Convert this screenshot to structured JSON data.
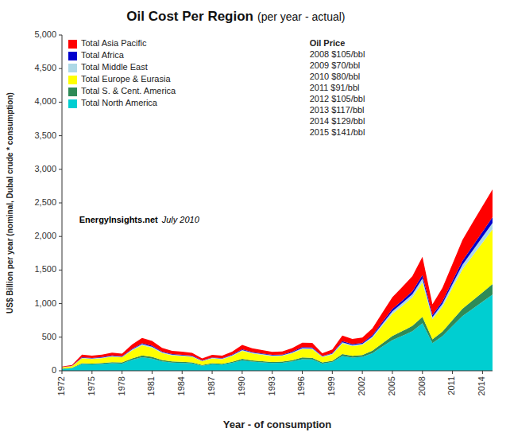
{
  "chart_data": {
    "type": "area",
    "stacked": true,
    "title": "Oil Cost Per Region",
    "subtitle": "(per year - actual)",
    "x_label": "Year - of consumption",
    "y_label": "US$ Billion per year (nominal, Dubal crude * consumption)",
    "x": [
      1972,
      1973,
      1974,
      1975,
      1976,
      1977,
      1978,
      1979,
      1980,
      1981,
      1982,
      1983,
      1984,
      1985,
      1986,
      1987,
      1988,
      1989,
      1990,
      1991,
      1992,
      1993,
      1994,
      1995,
      1996,
      1997,
      1998,
      1999,
      2000,
      2001,
      2002,
      2003,
      2004,
      2005,
      2006,
      2007,
      2008,
      2009,
      2010,
      2011,
      2012,
      2013,
      2014,
      2015
    ],
    "series": [
      {
        "name": "Total North America",
        "color": "#00CED1",
        "values": [
          28,
          38,
          100,
          95,
          102,
          112,
          108,
          162,
          200,
          182,
          140,
          122,
          116,
          110,
          75,
          98,
          92,
          118,
          155,
          136,
          125,
          115,
          118,
          138,
          172,
          170,
          108,
          130,
          218,
          196,
          206,
          262,
          360,
          456,
          520,
          588,
          708,
          412,
          514,
          666,
          815,
          922,
          1028,
          1135
        ]
      },
      {
        "name": "Total S. & Cent. America",
        "color": "#2E8B57",
        "values": [
          4,
          6,
          14,
          13,
          14,
          16,
          15,
          23,
          29,
          26,
          20,
          17,
          16,
          15,
          11,
          14,
          13,
          16,
          22,
          19,
          18,
          16,
          17,
          20,
          25,
          24,
          15,
          18,
          30,
          27,
          28,
          36,
          49,
          62,
          71,
          80,
          96,
          56,
          70,
          90,
          110,
          125,
          140,
          155
        ]
      },
      {
        "name": "Total Europe & Eurasia",
        "color": "#FFFF00",
        "values": [
          18,
          25,
          72,
          68,
          72,
          82,
          77,
          118,
          150,
          136,
          104,
          90,
          86,
          82,
          56,
          72,
          68,
          86,
          118,
          102,
          94,
          86,
          87,
          103,
          127,
          127,
          80,
          96,
          159,
          143,
          150,
          190,
          260,
          330,
          376,
          424,
          510,
          298,
          370,
          478,
          586,
          663,
          740,
          817
        ]
      },
      {
        "name": "Total Middle East",
        "color": "#ADD8E6",
        "values": [
          2,
          3,
          8,
          7,
          8,
          9,
          8,
          13,
          17,
          15,
          11,
          10,
          10,
          9,
          6,
          8,
          8,
          10,
          14,
          12,
          11,
          10,
          10,
          12,
          15,
          14,
          9,
          11,
          18,
          16,
          17,
          22,
          30,
          38,
          43,
          49,
          59,
          34,
          43,
          56,
          68,
          77,
          86,
          95
        ]
      },
      {
        "name": "Total Africa",
        "color": "#0000CD",
        "values": [
          2,
          3,
          7,
          7,
          7,
          8,
          8,
          11,
          14,
          13,
          10,
          9,
          9,
          8,
          5,
          7,
          7,
          9,
          12,
          10,
          10,
          9,
          9,
          11,
          13,
          13,
          8,
          10,
          16,
          15,
          15,
          19,
          27,
          34,
          38,
          43,
          52,
          30,
          38,
          49,
          60,
          68,
          76,
          84
        ]
      },
      {
        "name": "Total Asia Pacific",
        "color": "#FF0000",
        "values": [
          8,
          12,
          38,
          36,
          38,
          42,
          40,
          63,
          80,
          72,
          55,
          49,
          46,
          44,
          30,
          38,
          36,
          46,
          63,
          55,
          51,
          46,
          47,
          55,
          67,
          68,
          42,
          51,
          84,
          76,
          80,
          101,
          138,
          176,
          201,
          226,
          272,
          159,
          200,
          253,
          309,
          350,
          382,
          414
        ]
      }
    ],
    "xlim": [
      1972,
      2015
    ],
    "xticks": [
      1972,
      1975,
      1978,
      1981,
      1984,
      1987,
      1990,
      1993,
      1996,
      1999,
      2002,
      2005,
      2008,
      2011,
      2014
    ],
    "ylim": [
      0,
      5000
    ],
    "yticks": [
      0,
      500,
      {
        "value": 1000,
        "label": "1,000"
      },
      {
        "value": 1500,
        "label": "1,500"
      },
      {
        "value": 2000,
        "label": "2,000"
      },
      {
        "value": 2500,
        "label": "2,500"
      },
      {
        "value": 3000,
        "label": "3,000"
      },
      {
        "value": 3500,
        "label": "3,500"
      },
      {
        "value": 4000,
        "label": "4,000"
      },
      {
        "value": 4500,
        "label": "4,500"
      },
      {
        "value": 5000,
        "label": "5,000"
      }
    ],
    "grid": false,
    "legend": "upper left",
    "annotations": {
      "oil_price": [
        "Oil Price",
        "2008 $105/bbl",
        "2009 $70/bbl",
        "2010 $80/bbl",
        "2011 $91/bbl",
        "2012 $105/bbl",
        "2013 $117/bbl",
        "2014 $129/bbl",
        "2015 $141/bbl"
      ],
      "watermark": [
        "EnergyInsights.net",
        "July 2010"
      ]
    }
  }
}
